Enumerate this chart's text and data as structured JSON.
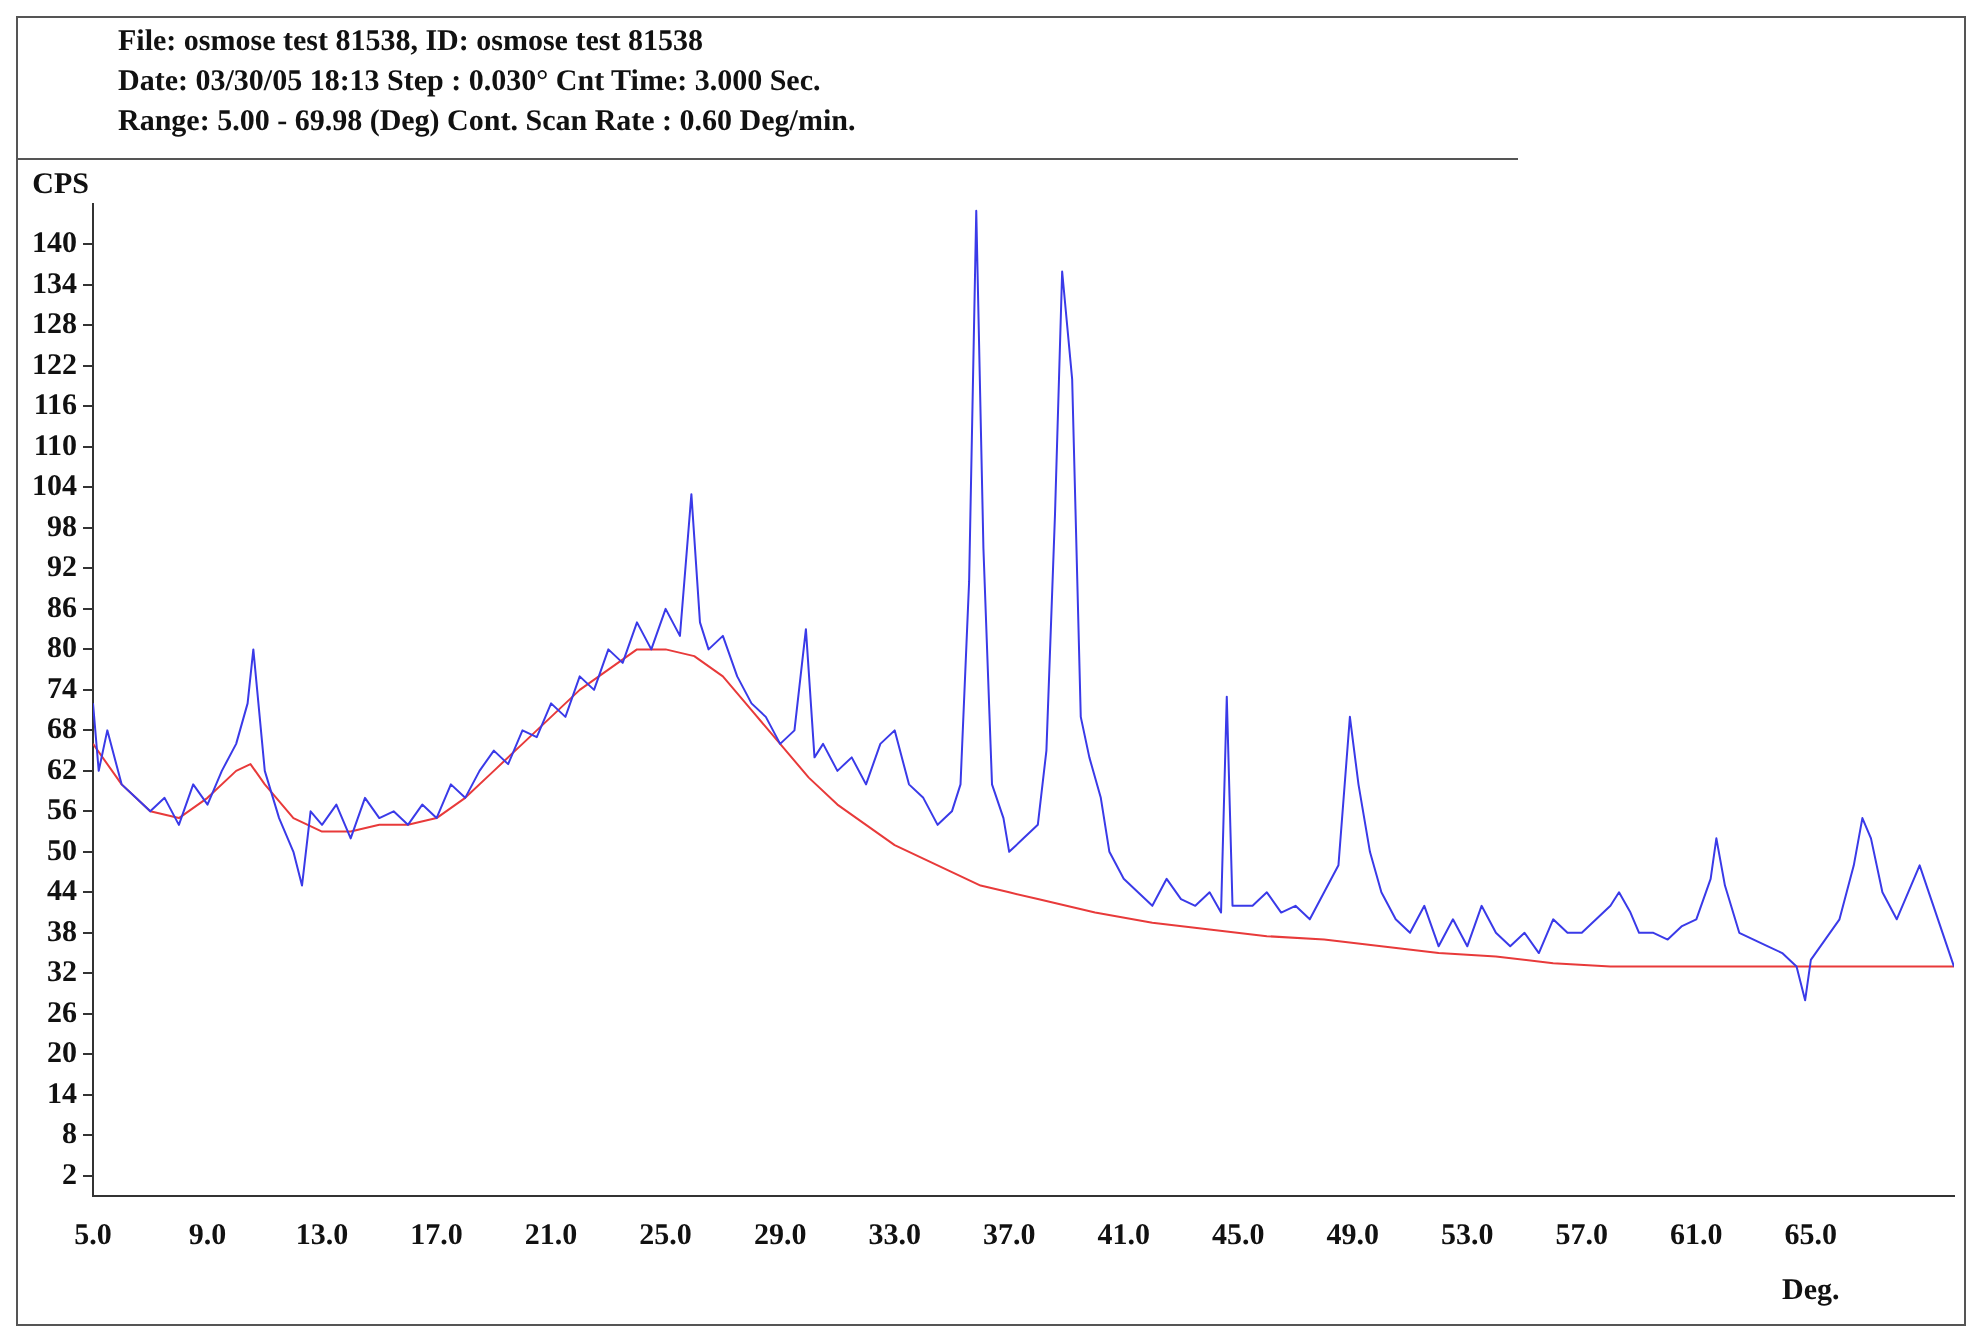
{
  "chart_data": {
    "type": "line",
    "title": "File: osmose test 81538, ID: osmose test 81538",
    "subtitle": "Date: 03/30/05 18:13  Step : 0.030° Cnt Time: 3.000 Sec.",
    "annotations": [
      "Range: 5.00 - 69.98 (Deg) Cont. Scan Rate : 0.60 Deg/min."
    ],
    "xlabel": "Deg.",
    "ylabel": "CPS",
    "xlim": [
      5,
      70
    ],
    "xticks": [
      {
        "value": 5,
        "label": "5.0"
      },
      {
        "value": 9,
        "label": "9.0"
      },
      {
        "value": 13,
        "label": "13.0"
      },
      {
        "value": 17,
        "label": "17.0"
      },
      {
        "value": 21,
        "label": "21.0"
      },
      {
        "value": 25,
        "label": "25.0"
      },
      {
        "value": 29,
        "label": "29.0"
      },
      {
        "value": 33,
        "label": "33.0"
      },
      {
        "value": 37,
        "label": "37.0"
      },
      {
        "value": 41,
        "label": "41.0"
      },
      {
        "value": 45,
        "label": "45.0"
      },
      {
        "value": 49,
        "label": "49.0"
      },
      {
        "value": 53,
        "label": "53.0"
      },
      {
        "value": 57,
        "label": "57.0"
      },
      {
        "value": 61,
        "label": "61.0"
      },
      {
        "value": 65,
        "label": "65.0"
      }
    ],
    "ylim": [
      -1,
      146
    ],
    "yticks": [
      2,
      8,
      14,
      20,
      26,
      32,
      38,
      44,
      50,
      56,
      62,
      68,
      74,
      80,
      86,
      92,
      98,
      104,
      110,
      116,
      122,
      128,
      134,
      140
    ],
    "grid": false,
    "legend": false,
    "marker": "none",
    "line_style": "solid",
    "series": [
      {
        "color": "#3a3ae8",
        "x": [
          5,
          5.2,
          5.5,
          6,
          6.5,
          7,
          7.5,
          8,
          8.5,
          9,
          9.5,
          10,
          10.4,
          10.6,
          11,
          11.5,
          12,
          12.3,
          12.6,
          13,
          13.5,
          14,
          14.5,
          15,
          15.5,
          16,
          16.5,
          17,
          17.5,
          18,
          18.5,
          19,
          19.5,
          20,
          20.5,
          21,
          21.5,
          22,
          22.5,
          23,
          23.5,
          24,
          24.5,
          25,
          25.5,
          25.9,
          26.2,
          26.5,
          27,
          27.5,
          28,
          28.5,
          29,
          29.5,
          29.9,
          30.2,
          30.5,
          31,
          31.5,
          32,
          32.5,
          33,
          33.5,
          34,
          34.5,
          35,
          35.3,
          35.6,
          35.85,
          36.1,
          36.4,
          36.8,
          37,
          37.5,
          38,
          38.3,
          38.6,
          38.85,
          39.2,
          39.5,
          39.8,
          40.2,
          40.5,
          41,
          41.5,
          42,
          42.5,
          43,
          43.5,
          44,
          44.4,
          44.6,
          44.8,
          45.5,
          46,
          46.5,
          47,
          47.5,
          48,
          48.5,
          48.9,
          49.2,
          49.6,
          50,
          50.5,
          51,
          51.5,
          52,
          52.5,
          53,
          53.5,
          54,
          54.5,
          55,
          55.5,
          56,
          56.5,
          57,
          57.5,
          58,
          58.3,
          58.7,
          59,
          59.5,
          60,
          60.5,
          61,
          61.5,
          61.7,
          62,
          62.5,
          63,
          63.5,
          64,
          64.5,
          64.8,
          65,
          65.5,
          66,
          66.5,
          66.8,
          67.1,
          67.5,
          68,
          68.5,
          68.8,
          69.2,
          69.6,
          70
        ],
        "values": [
          72,
          62,
          68,
          60,
          58,
          56,
          58,
          54,
          60,
          57,
          62,
          66,
          72,
          80,
          62,
          55,
          50,
          45,
          56,
          54,
          57,
          52,
          58,
          55,
          56,
          54,
          57,
          55,
          60,
          58,
          62,
          65,
          63,
          68,
          67,
          72,
          70,
          76,
          74,
          80,
          78,
          84,
          80,
          86,
          82,
          103,
          84,
          80,
          82,
          76,
          72,
          70,
          66,
          68,
          83,
          64,
          66,
          62,
          64,
          60,
          66,
          68,
          60,
          58,
          54,
          56,
          60,
          90,
          145,
          95,
          60,
          55,
          50,
          52,
          54,
          65,
          100,
          136,
          120,
          70,
          64,
          58,
          50,
          46,
          44,
          42,
          46,
          43,
          42,
          44,
          41,
          73,
          42,
          42,
          44,
          41,
          42,
          40,
          44,
          48,
          70,
          60,
          50,
          44,
          40,
          38,
          42,
          36,
          40,
          36,
          42,
          38,
          36,
          38,
          35,
          40,
          38,
          38,
          40,
          42,
          44,
          41,
          38,
          38,
          37,
          39,
          40,
          46,
          52,
          45,
          38,
          37,
          36,
          35,
          33,
          28,
          34,
          37,
          40,
          48,
          55,
          52,
          44,
          40,
          45,
          48,
          43,
          38,
          33
        ]
      },
      {
        "color": "#e83a3a",
        "x": [
          5,
          6,
          7,
          8,
          9,
          10,
          10.5,
          11,
          12,
          13,
          14,
          15,
          16,
          17,
          18,
          19,
          20,
          21,
          22,
          23,
          24,
          25,
          26,
          27,
          28,
          29,
          30,
          31,
          32,
          33,
          34,
          35,
          36,
          37,
          38,
          40,
          42,
          44,
          46,
          48,
          50,
          52,
          54,
          56,
          58,
          60,
          65,
          70
        ],
        "values": [
          66,
          60,
          56,
          55,
          58,
          62,
          63,
          60,
          55,
          53,
          53,
          54,
          54,
          55,
          58,
          62,
          66,
          70,
          74,
          77,
          80,
          80,
          79,
          76,
          71,
          66,
          61,
          57,
          54,
          51,
          49,
          47,
          45,
          44,
          43,
          41,
          39.5,
          38.5,
          37.5,
          37,
          36,
          35,
          34.5,
          33.5,
          33,
          33,
          33,
          33
        ]
      }
    ]
  }
}
